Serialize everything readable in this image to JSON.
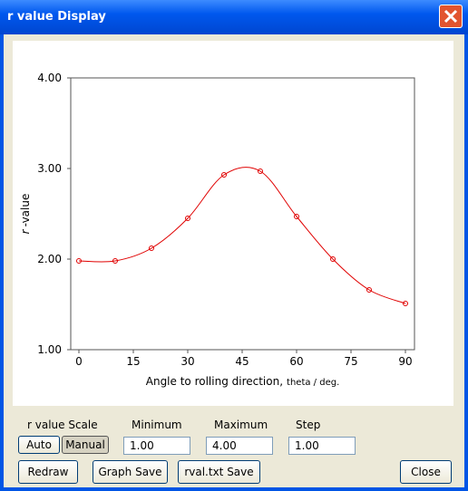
{
  "window": {
    "title": "r value Display"
  },
  "chart_data": {
    "type": "line",
    "x_label": "Angle to rolling direction,",
    "x_label_unit": "theta / deg.",
    "y_label_symbol": "r",
    "y_label": "-value",
    "x": [
      0,
      10,
      20,
      30,
      40,
      50,
      60,
      70,
      80,
      90
    ],
    "series": [
      {
        "color": "#e00000",
        "values": [
          1.98,
          1.98,
          2.12,
          2.45,
          2.93,
          2.97,
          2.47,
          2.0,
          1.66,
          1.51
        ]
      }
    ],
    "xlim": [
      -2.25,
      92.5
    ],
    "xticks": [
      0,
      15,
      30,
      45,
      60,
      75,
      90
    ],
    "ylim": [
      1,
      4
    ],
    "yticks": [
      {
        "value": 1,
        "label": "1.00"
      },
      {
        "value": 2,
        "label": "2.00"
      },
      {
        "value": 3,
        "label": "3.00"
      },
      {
        "value": 4,
        "label": "4.00"
      }
    ],
    "smooth": true,
    "markers": true
  },
  "controls": {
    "scale_label": "r value Scale",
    "minimum_label": "Minimum",
    "maximum_label": "Maximum",
    "step_label": "Step",
    "auto": "Auto",
    "manual": "Manual",
    "minimum": "1.00",
    "maximum": "4.00",
    "step": "1.00",
    "redraw": "Redraw",
    "graph_save": "Graph Save",
    "rval_save": "rval.txt Save",
    "close": "Close"
  }
}
